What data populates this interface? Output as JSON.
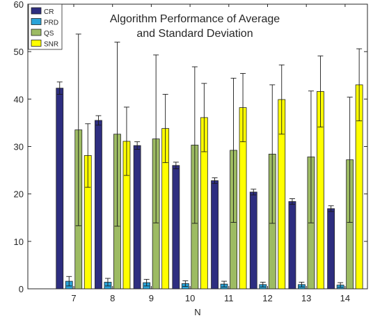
{
  "chart_data": {
    "type": "bar",
    "title_lines": [
      "Algorithm Performance of Average",
      "and Standard Deviation"
    ],
    "xlabel": "N",
    "ylabel": "",
    "categories": [
      "7",
      "8",
      "9",
      "10",
      "11",
      "12",
      "13",
      "14"
    ],
    "ylim": [
      0,
      60
    ],
    "yticks": [
      0,
      10,
      20,
      30,
      40,
      50,
      60
    ],
    "legend_position": "top-left",
    "grid": false,
    "series": [
      {
        "name": "CR",
        "color": "#2e2e80",
        "values": [
          42.3,
          35.5,
          30.2,
          26.0,
          22.8,
          20.4,
          18.4,
          16.9
        ],
        "errors": [
          1.3,
          1.0,
          0.8,
          0.7,
          0.6,
          0.6,
          0.6,
          0.6
        ]
      },
      {
        "name": "PRD",
        "color": "#2aa3d8",
        "values": [
          1.6,
          1.4,
          1.3,
          1.1,
          1.0,
          0.9,
          0.9,
          0.8
        ],
        "errors": [
          1.0,
          0.8,
          0.7,
          0.6,
          0.6,
          0.5,
          0.5,
          0.5
        ]
      },
      {
        "name": "QS",
        "color": "#9dbb63",
        "values": [
          33.5,
          32.6,
          31.6,
          30.3,
          29.2,
          28.4,
          27.8,
          27.2
        ],
        "errors": [
          20.2,
          19.4,
          17.7,
          16.5,
          15.2,
          14.6,
          13.9,
          13.2
        ]
      },
      {
        "name": "SNR",
        "color": "#ffff00",
        "values": [
          28.1,
          31.1,
          33.8,
          36.1,
          38.2,
          39.9,
          41.6,
          43.0
        ],
        "errors": [
          6.7,
          7.2,
          7.2,
          7.2,
          7.2,
          7.3,
          7.5,
          7.6
        ]
      }
    ]
  }
}
